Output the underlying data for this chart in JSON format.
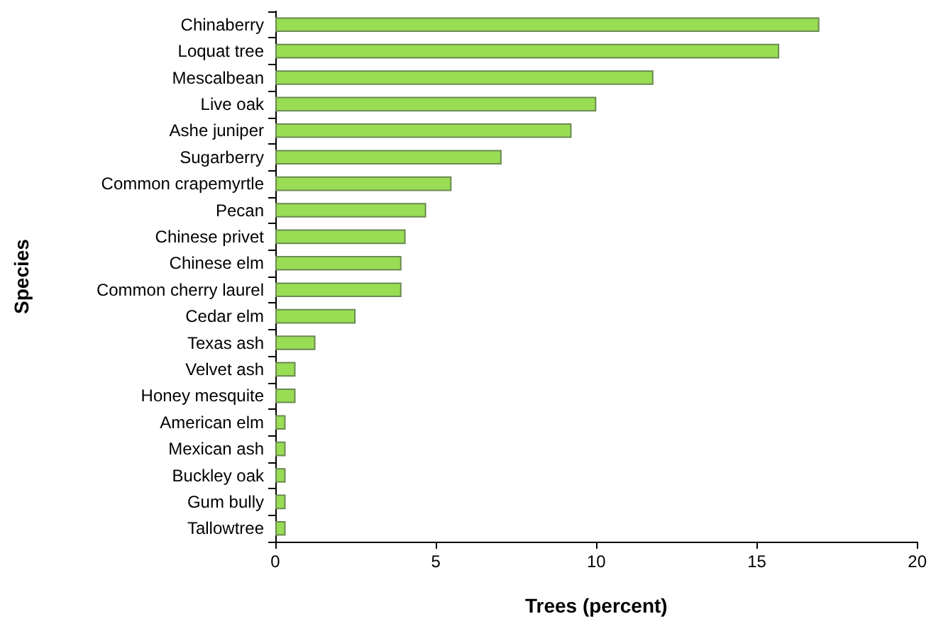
{
  "chart_data": {
    "type": "bar",
    "orientation": "horizontal",
    "xlabel": "Trees (percent)",
    "ylabel": "Species",
    "categories": [
      "Chinaberry",
      "Loquat tree",
      "Mescalbean",
      "Live oak",
      "Ashe juniper",
      "Sugarberry",
      "Common crapemyrtle",
      "Pecan",
      "Chinese privet",
      "Chinese elm",
      "Common cherry laurel",
      "Cedar elm",
      "Texas ash",
      "Velvet ash",
      "Honey mesquite",
      "American elm",
      "Mexican ash",
      "Buckley oak",
      "Gum bully",
      "Tallowtree"
    ],
    "values": [
      16.95,
      15.7,
      11.78,
      10.0,
      9.23,
      7.05,
      5.49,
      4.7,
      4.06,
      3.93,
      3.93,
      2.5,
      1.25,
      0.63,
      0.63,
      0.32,
      0.32,
      0.32,
      0.32,
      0.32
    ],
    "color": "#99dd55",
    "xlim": [
      0,
      20
    ],
    "xticks": [
      0,
      5,
      10,
      15,
      20
    ],
    "grid": false
  }
}
